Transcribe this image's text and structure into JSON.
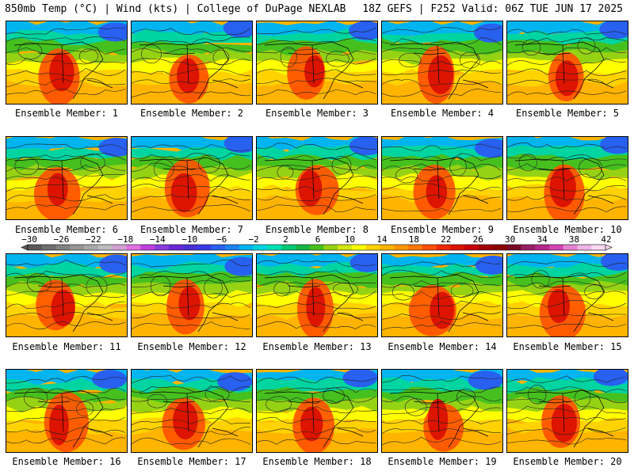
{
  "header": {
    "left": "850mb Temp (°C) | Wind (kts) | College of DuPage NEXLAB",
    "right": "18Z GEFS | F252 Valid: 06Z TUE JUN 17 2025"
  },
  "caption_prefix": "Ensemble Member: ",
  "members": [
    "1",
    "2",
    "3",
    "4",
    "5",
    "6",
    "7",
    "8",
    "9",
    "10",
    "11",
    "12",
    "13",
    "14",
    "15",
    "16",
    "17",
    "18",
    "19",
    "20"
  ],
  "colorbar": {
    "ticks": [
      "-30",
      "-26",
      "-22",
      "-18",
      "-14",
      "-10",
      "-6",
      "-2",
      "2",
      "6",
      "10",
      "14",
      "18",
      "22",
      "26",
      "30",
      "34",
      "38",
      "42"
    ],
    "colors": [
      "#5a5a5a",
      "#6e6e6e",
      "#828282",
      "#969696",
      "#aaaaaa",
      "#bebebe",
      "#d2a0d2",
      "#e070e0",
      "#c040e0",
      "#8c3cdc",
      "#6a2ad6",
      "#4a30d2",
      "#3a3ae8",
      "#2860f0",
      "#1e82f0",
      "#00b4f0",
      "#00d4e0",
      "#00e0b4",
      "#00c878",
      "#18b446",
      "#46c01e",
      "#96d214",
      "#d2e614",
      "#ffff00",
      "#ffd200",
      "#ffb400",
      "#ff9600",
      "#ff7800",
      "#ff5000",
      "#f02800",
      "#dc1400",
      "#c80000",
      "#a00000",
      "#8c0000",
      "#780a28",
      "#961e64",
      "#b4288c",
      "#d246b4",
      "#e682d2",
      "#f0b4e6",
      "#f8d8f2"
    ]
  }
}
